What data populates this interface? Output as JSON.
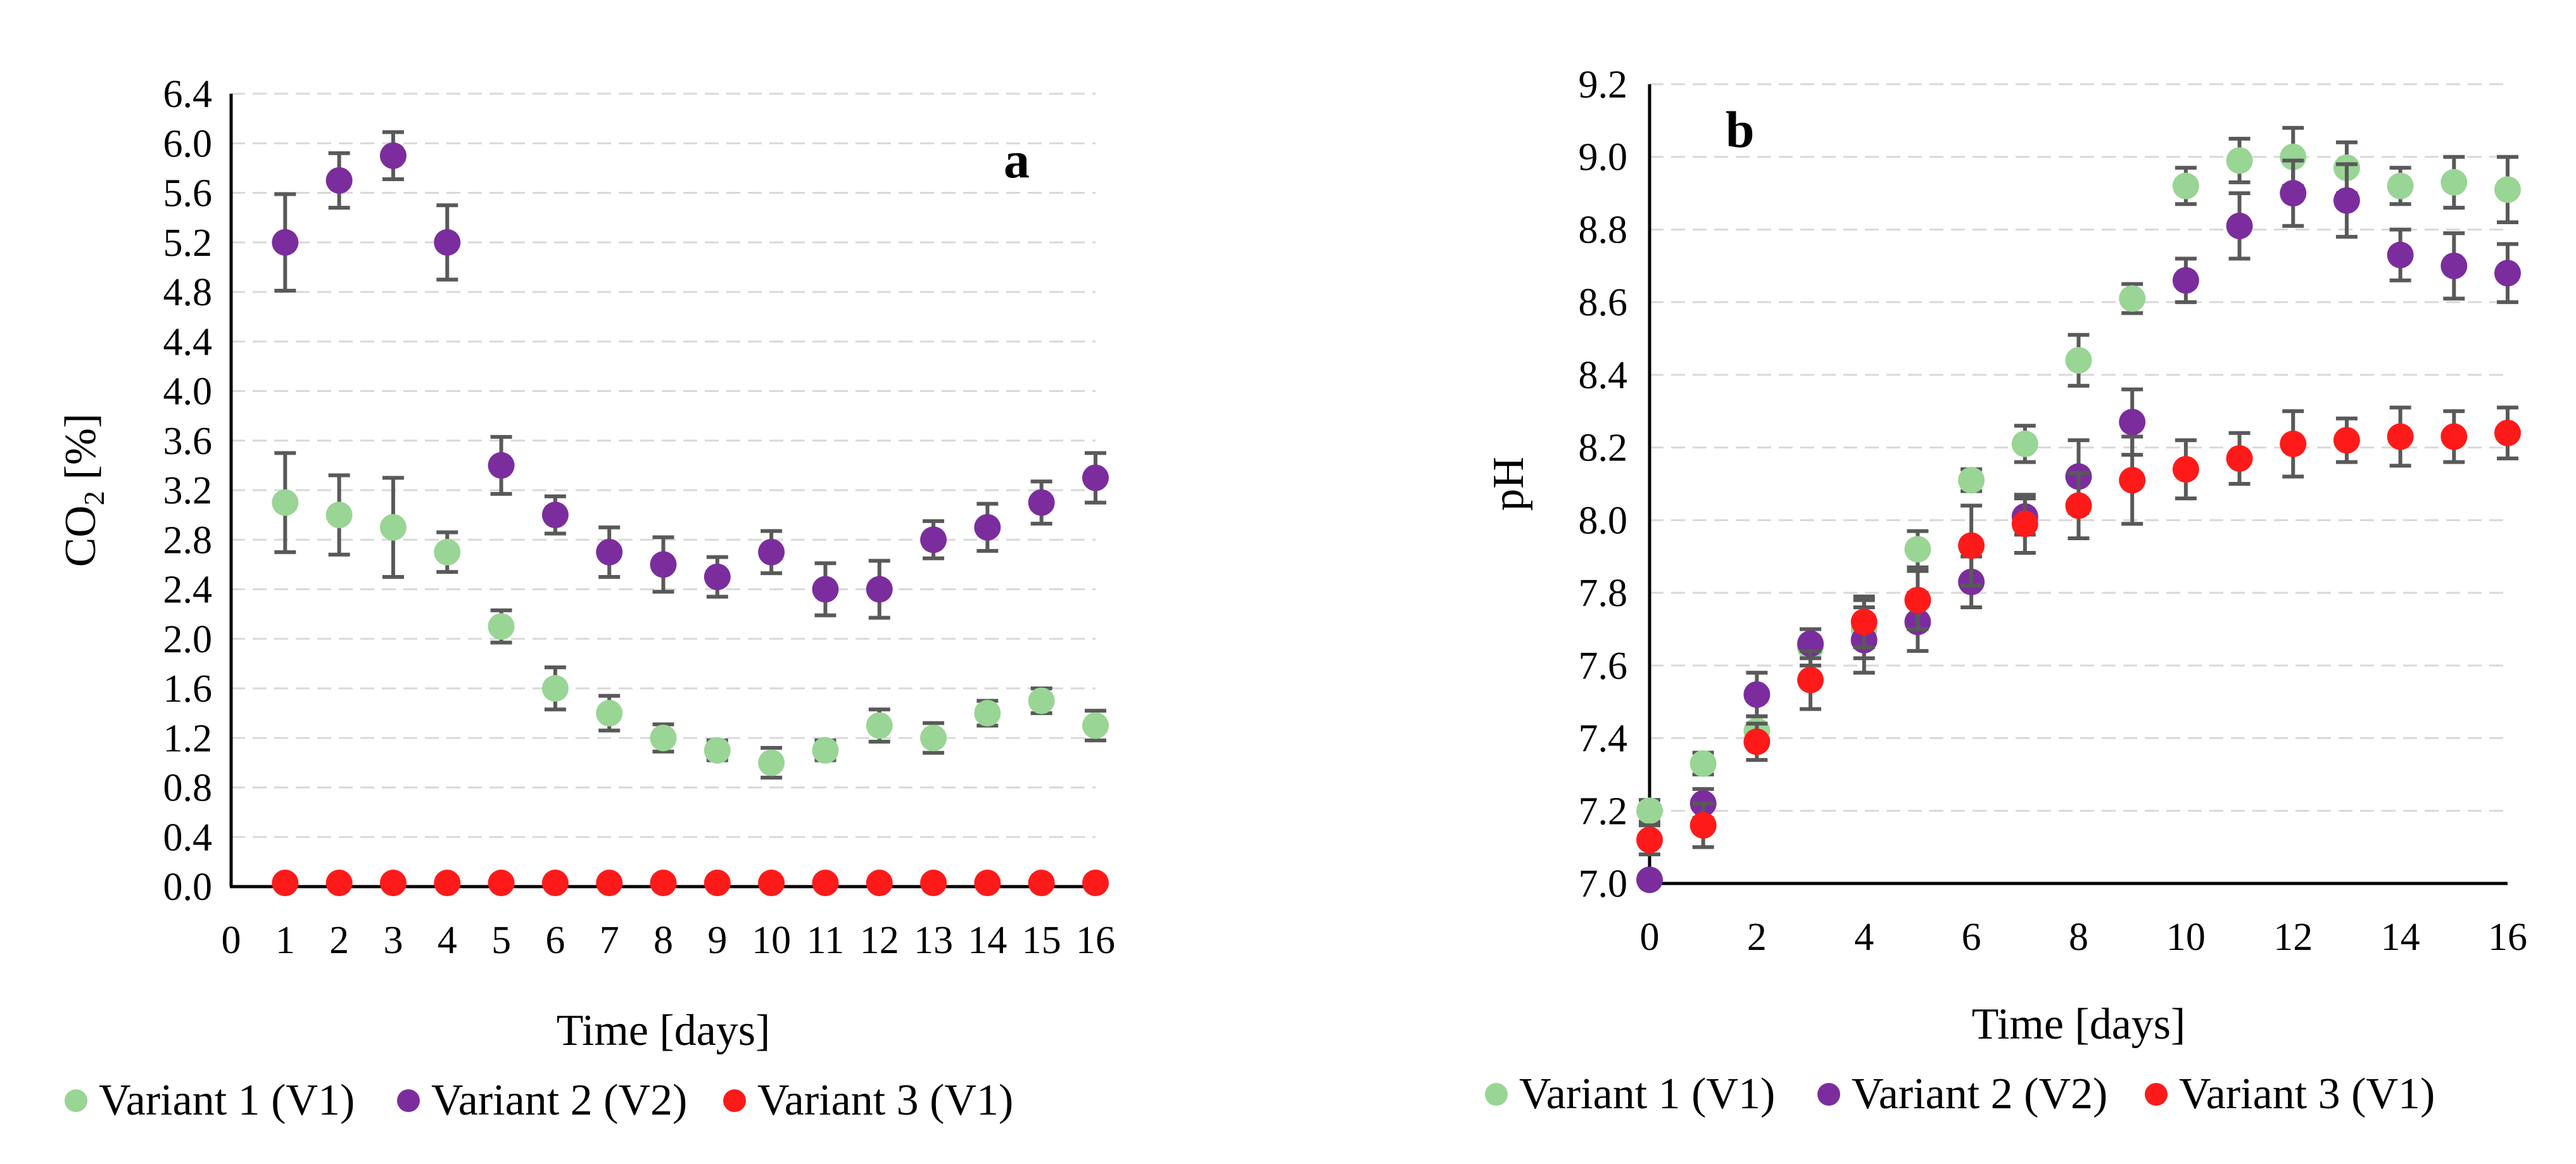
{
  "chart_data": [
    {
      "type": "scatter",
      "panel_label": "a",
      "xlabel": "Time [days]",
      "ylabel_main": "CO",
      "ylabel_sub": "2",
      "ylabel_unit": " [%]",
      "xlim": [
        0,
        16
      ],
      "ylim": [
        0,
        6.4
      ],
      "x_ticks": [
        0,
        1,
        2,
        3,
        4,
        5,
        6,
        7,
        8,
        9,
        10,
        11,
        12,
        13,
        14,
        15,
        16
      ],
      "y_ticks": [
        "0.0",
        "0.4",
        "0.8",
        "1.2",
        "1.6",
        "2.0",
        "2.4",
        "2.8",
        "3.2",
        "3.6",
        "4.0",
        "4.4",
        "4.8",
        "5.2",
        "5.6",
        "6.0",
        "6.4"
      ],
      "grid": "horizontal dashed",
      "legend_position": "bottom",
      "series": [
        {
          "name": "Variant 1 (V1)",
          "color": "#99d594",
          "x": [
            1,
            2,
            3,
            4,
            5,
            6,
            7,
            8,
            9,
            10,
            11,
            12,
            13,
            14,
            15,
            16
          ],
          "y": [
            3.1,
            3.0,
            2.9,
            2.7,
            2.1,
            1.6,
            1.4,
            1.2,
            1.1,
            1.0,
            1.1,
            1.3,
            1.2,
            1.4,
            1.5,
            1.3
          ],
          "err": [
            0.4,
            0.32,
            0.4,
            0.16,
            0.13,
            0.17,
            0.14,
            0.11,
            0.08,
            0.12,
            0.08,
            0.13,
            0.12,
            0.1,
            0.1,
            0.12
          ]
        },
        {
          "name": "Variant 2 (V2)",
          "color": "#7b2d9e",
          "x": [
            1,
            2,
            3,
            4,
            5,
            6,
            7,
            8,
            9,
            10,
            11,
            12,
            13,
            14,
            15,
            16
          ],
          "y": [
            5.2,
            5.7,
            5.9,
            5.2,
            3.4,
            3.0,
            2.7,
            2.6,
            2.5,
            2.7,
            2.4,
            2.4,
            2.8,
            2.9,
            3.1,
            3.3
          ],
          "err": [
            0.39,
            0.22,
            0.19,
            0.3,
            0.23,
            0.15,
            0.2,
            0.22,
            0.16,
            0.17,
            0.21,
            0.23,
            0.15,
            0.19,
            0.17,
            0.2
          ]
        },
        {
          "name": "Variant 3 (V1)",
          "color": "#ff1a1a",
          "x": [
            1,
            2,
            3,
            4,
            5,
            6,
            7,
            8,
            9,
            10,
            11,
            12,
            13,
            14,
            15,
            16
          ],
          "y": [
            0.03,
            0.03,
            0.03,
            0.03,
            0.03,
            0.03,
            0.03,
            0.03,
            0.03,
            0.03,
            0.03,
            0.03,
            0.03,
            0.03,
            0.03,
            0.03
          ],
          "err": [
            0,
            0,
            0,
            0,
            0,
            0,
            0,
            0,
            0,
            0,
            0,
            0,
            0,
            0,
            0,
            0
          ]
        }
      ]
    },
    {
      "type": "scatter",
      "panel_label": "b",
      "xlabel": "Time [days]",
      "ylabel_main": "pH",
      "ylabel_sub": "",
      "ylabel_unit": "",
      "xlim": [
        0,
        16
      ],
      "ylim": [
        7.0,
        9.2
      ],
      "x_ticks": [
        0,
        2,
        4,
        6,
        8,
        10,
        12,
        14,
        16
      ],
      "y_ticks": [
        "7.0",
        "7.2",
        "7.4",
        "7.6",
        "7.8",
        "8.0",
        "8.2",
        "8.4",
        "8.6",
        "8.8",
        "9.0",
        "9.2"
      ],
      "grid": "horizontal dashed",
      "legend_position": "bottom",
      "series": [
        {
          "name": "Variant 1 (V1)",
          "color": "#99d594",
          "x": [
            0,
            1,
            2,
            3,
            4,
            5,
            6,
            7,
            8,
            9,
            10,
            11,
            12,
            13,
            14,
            15,
            16
          ],
          "y": [
            7.2,
            7.33,
            7.42,
            7.65,
            7.7,
            7.92,
            8.11,
            8.21,
            8.44,
            8.61,
            8.92,
            8.99,
            9.0,
            8.97,
            8.92,
            8.93,
            8.91
          ],
          "err": [
            0.03,
            0.03,
            0.04,
            0.05,
            0.08,
            0.05,
            0.03,
            0.05,
            0.07,
            0.04,
            0.05,
            0.06,
            0.08,
            0.07,
            0.05,
            0.07,
            0.09
          ]
        },
        {
          "name": "Variant 2 (V2)",
          "color": "#7b2d9e",
          "x": [
            0,
            1,
            2,
            3,
            4,
            5,
            6,
            7,
            8,
            9,
            10,
            11,
            12,
            13,
            14,
            15,
            16
          ],
          "y": [
            7.01,
            7.22,
            7.52,
            7.66,
            7.67,
            7.72,
            7.83,
            8.01,
            8.12,
            8.27,
            8.66,
            8.81,
            8.9,
            8.88,
            8.73,
            8.7,
            8.68
          ],
          "err": [
            0.0,
            0.04,
            0.06,
            0.04,
            0.09,
            0.08,
            0.07,
            0.05,
            0.1,
            0.09,
            0.06,
            0.09,
            0.09,
            0.1,
            0.07,
            0.09,
            0.08
          ]
        },
        {
          "name": "Variant 3 (V1)",
          "color": "#ff1a1a",
          "x": [
            0,
            1,
            2,
            3,
            4,
            5,
            6,
            7,
            8,
            9,
            10,
            11,
            12,
            13,
            14,
            15,
            16
          ],
          "y": [
            7.12,
            7.16,
            7.39,
            7.56,
            7.72,
            7.78,
            7.93,
            7.99,
            8.04,
            8.11,
            8.14,
            8.17,
            8.21,
            8.22,
            8.23,
            8.23,
            8.24
          ],
          "err": [
            0.04,
            0.06,
            0.05,
            0.08,
            0.07,
            0.08,
            0.11,
            0.08,
            0.09,
            0.12,
            0.08,
            0.07,
            0.09,
            0.06,
            0.08,
            0.07,
            0.07
          ]
        }
      ]
    }
  ]
}
